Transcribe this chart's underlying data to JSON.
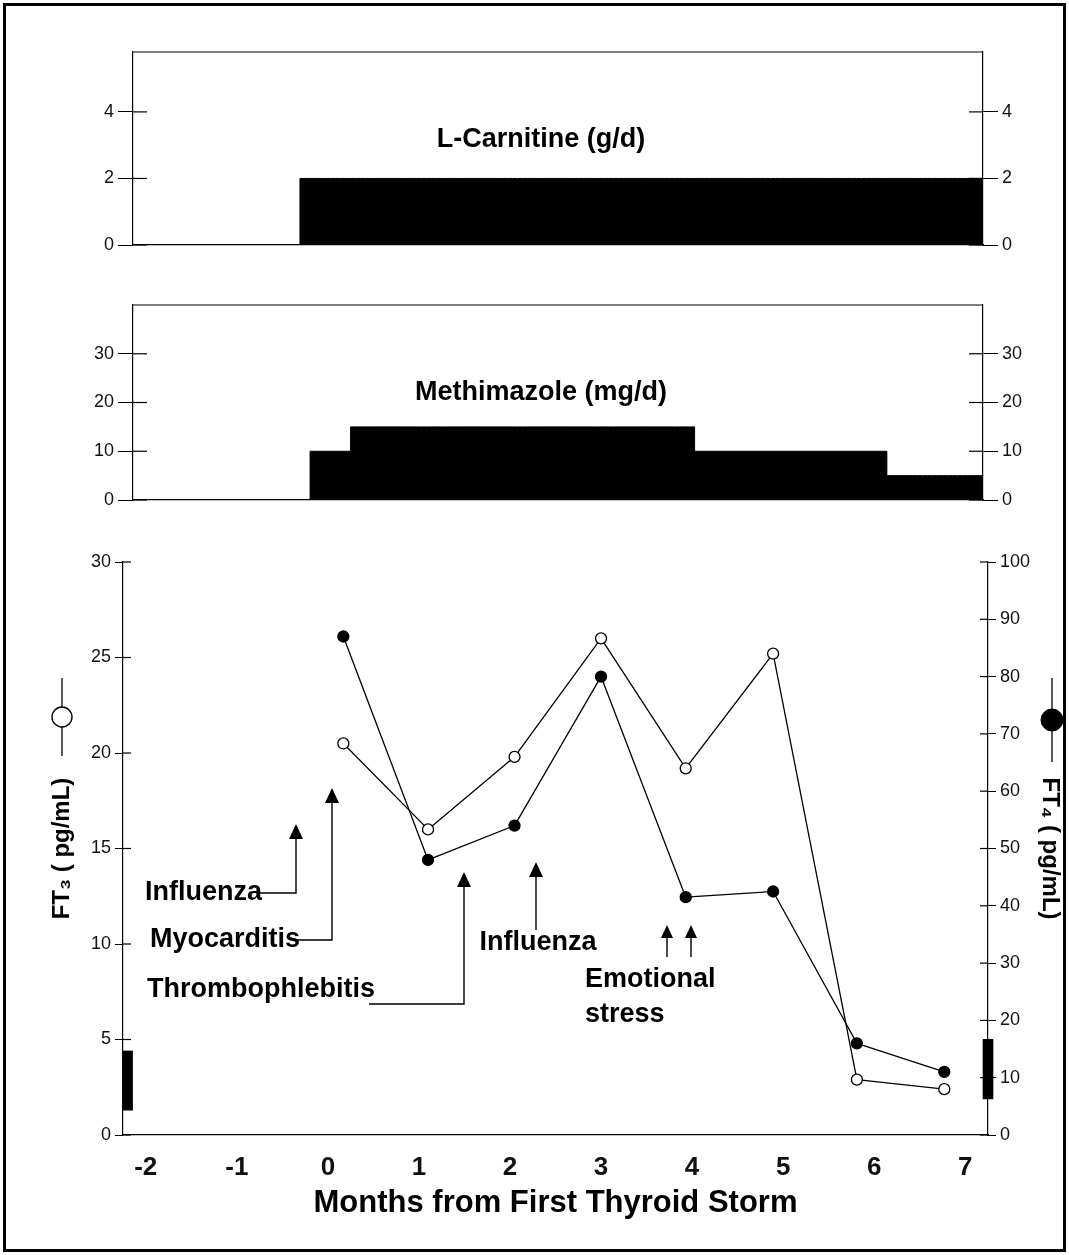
{
  "chart_data": [
    {
      "type": "area",
      "title": "L-Carnitine (g/d)",
      "categories": [
        null,
        null,
        null,
        null,
        null,
        null,
        null,
        null,
        null,
        null,
        null,
        null,
        null,
        null,
        null,
        null,
        null,
        null,
        null,
        null,
        null,
        null,
        null,
        null,
        null,
        null,
        null,
        null,
        null,
        null,
        null,
        null,
        null,
        null,
        null,
        null,
        null,
        null,
        null,
        null,
        null,
        null,
        null,
        null,
        null,
        null,
        null,
        null,
        null,
        null,
        null,
        null,
        null,
        null,
        null,
        null,
        null,
        null,
        null,
        null,
        null,
        null,
        null,
        null,
        null,
        null,
        null,
        null,
        null,
        null,
        null,
        null,
        null,
        null,
        null,
        null,
        null,
        null,
        null,
        null,
        null,
        null,
        null,
        null,
        null
      ],
      "values": [
        0,
        0,
        0,
        0,
        0,
        0,
        0,
        0,
        0,
        0,
        0,
        0,
        0,
        0,
        0,
        0,
        0,
        2,
        2,
        2,
        2,
        2,
        2,
        2,
        2,
        2,
        2,
        2,
        2,
        2,
        2,
        2,
        2,
        2,
        2,
        2,
        2,
        2,
        2,
        2,
        2,
        2,
        2,
        2,
        2,
        2,
        2,
        2,
        2,
        2,
        2,
        2,
        2,
        2,
        2,
        2,
        2,
        2,
        2,
        2,
        2,
        2,
        2,
        2,
        2,
        2,
        2,
        2,
        2,
        2,
        2,
        2,
        2,
        2,
        2,
        2,
        2,
        2,
        2,
        2,
        2,
        2,
        2,
        2,
        2
      ],
      "color": "#000000",
      "ylim": [
        0,
        5.8
      ],
      "yticks": [
        0,
        2,
        4
      ],
      "y2lim": [
        0,
        5.8
      ],
      "y2ticks": [
        0,
        2,
        4
      ],
      "tick_labels": "y"
    },
    {
      "type": "area",
      "title": "Methimazole (mg/d)",
      "categories": [
        null,
        null,
        null,
        null,
        null,
        null,
        null,
        null,
        null,
        null,
        null,
        null,
        null,
        null,
        null,
        null,
        null,
        null,
        null,
        null,
        null,
        null,
        null,
        null,
        null,
        null,
        null,
        null,
        null,
        null,
        null,
        null,
        null,
        null,
        null,
        null,
        null,
        null,
        null,
        null,
        null,
        null,
        null,
        null,
        null,
        null,
        null,
        null,
        null,
        null,
        null,
        null,
        null,
        null,
        null,
        null,
        null,
        null,
        null,
        null,
        null,
        null,
        null,
        null,
        null,
        null,
        null,
        null,
        null,
        null,
        null,
        null,
        null,
        null,
        null,
        null,
        null,
        null,
        null,
        null,
        null,
        null,
        null,
        null,
        null
      ],
      "values": [
        0,
        0,
        0,
        0,
        0,
        0,
        0,
        0,
        0,
        0,
        0,
        0,
        0,
        0,
        0,
        0,
        0,
        0,
        10,
        10,
        10,
        10,
        15,
        15,
        15,
        15,
        15,
        15,
        15,
        15,
        15,
        15,
        15,
        15,
        15,
        15,
        15,
        15,
        15,
        15,
        15,
        15,
        15,
        15,
        15,
        15,
        15,
        15,
        15,
        15,
        15,
        15,
        15,
        15,
        15,
        15,
        10,
        10,
        10,
        10,
        10,
        10,
        10,
        10,
        10,
        10,
        10,
        10,
        10,
        10,
        10,
        10,
        10,
        10,
        10,
        5,
        5,
        5,
        5,
        5,
        5,
        5,
        5,
        5,
        5
      ],
      "color": "#000000",
      "ylim": [
        0,
        40
      ],
      "yticks": [
        0,
        10,
        20,
        30
      ],
      "y2lim": [
        0,
        40
      ],
      "y2ticks": [
        0,
        10,
        20,
        30
      ],
      "tick_labels": "y"
    },
    {
      "type": "line",
      "xlabel": "Months from First Thyroid Storm",
      "ylabel": "FT₃ ( pg/mL)",
      "y2label": "FT₄ ( pg/mL)",
      "x": [
        0.17,
        1.1,
        2.05,
        3.0,
        3.93,
        4.89,
        5.81,
        6.77
      ],
      "marker": "circle",
      "series": [
        {
          "color": "#000000",
          "values": [
            20.5,
            16,
            19.8,
            26,
            19.2,
            25.2,
            2.9,
            2.4
          ]
        },
        {
          "color": "#000000",
          "axis": "y2",
          "values": [
            87,
            48,
            54,
            80,
            41.5,
            42.5,
            16,
            11
          ]
        },
        {
          "type": "bar",
          "color": "#000000",
          "x": [
            -2.2
          ],
          "base": [
            1.3
          ],
          "values": [
            3.1
          ]
        },
        {
          "type": "bar",
          "axis": "y2",
          "color": "#000000",
          "x": [
            7.25
          ],
          "base": [
            6.3
          ],
          "values": [
            10.4
          ]
        }
      ],
      "xlim": [
        -2.25,
        7.25
      ],
      "xticks": [
        -2,
        -1,
        0,
        1,
        2,
        3,
        4,
        5,
        6,
        7
      ],
      "ylim": [
        0,
        30
      ],
      "yticks": [
        0,
        5,
        10,
        15,
        20,
        25,
        30
      ],
      "y2lim": [
        0,
        100
      ],
      "y2ticks": [
        0,
        10,
        20,
        30,
        40,
        50,
        60,
        70,
        80,
        90,
        100
      ],
      "annotations": [
        "Influenza",
        "Myocarditis",
        "Thrombophlebitis",
        "Influenza",
        "Emotional stress"
      ]
    }
  ]
}
